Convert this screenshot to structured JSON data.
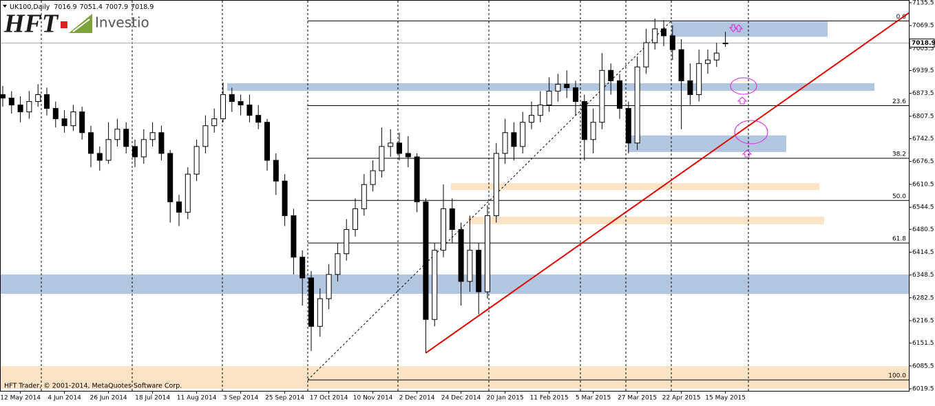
{
  "chart_data": {
    "type": "candlestick",
    "symbol": "UK100,Daily",
    "categories": [
      null,
      null,
      "12 May 2014",
      null,
      null,
      null,
      null,
      "4 Jun 2014",
      null,
      null,
      null,
      null,
      "26 Jun 2014",
      null,
      null,
      null,
      null,
      "18 Jul 2014",
      null,
      null,
      null,
      null,
      "11 Aug 2014",
      null,
      null,
      null,
      null,
      "3 Sep 2014",
      null,
      null,
      null,
      null,
      "25 Sep 2014",
      null,
      null,
      null,
      null,
      "17 Oct 2014",
      null,
      null,
      null,
      null,
      "10 Nov 2014",
      null,
      null,
      null,
      null,
      "2 Dec 2014",
      null,
      null,
      null,
      null,
      "24 Dec 2014",
      null,
      null,
      null,
      null,
      "20 Jan 2015",
      null,
      null,
      null,
      null,
      "11 Feb 2015",
      null,
      null,
      null,
      null,
      "5 Mar 2015",
      null,
      null,
      null,
      null,
      "27 Mar 2015",
      null,
      null,
      null,
      null,
      "22 Apr 2015",
      null,
      null,
      null,
      null,
      "15 May 2015"
    ],
    "open": [
      6870,
      6860,
      6840,
      6820,
      6850,
      6870,
      6830,
      6800,
      6780,
      6820,
      6760,
      6700,
      6680,
      6740,
      6770,
      6720,
      6690,
      6740,
      6760,
      6700,
      6560,
      6530,
      6640,
      6720,
      6780,
      6800,
      6870,
      6850,
      6840,
      6810,
      6790,
      6680,
      6620,
      6520,
      6400,
      6340,
      6200,
      6280,
      6350,
      6410,
      6480,
      6540,
      6610,
      6650,
      6720,
      6730,
      6700,
      6690,
      6560,
      6220,
      6420,
      6540,
      6480,
      6330,
      6420,
      6300,
      6520,
      6700,
      6760,
      6720,
      6790,
      6810,
      6840,
      6880,
      6900,
      6890,
      6850,
      6740,
      6790,
      6940,
      6910,
      6830,
      6730,
      6950,
      7020,
      7060,
      7040,
      7000,
      6910,
      6870,
      6960,
      6970,
      7016.9
    ],
    "high": [
      6895,
      6880,
      6865,
      6880,
      6900,
      6890,
      6850,
      6825,
      6840,
      6835,
      6780,
      6720,
      6790,
      6800,
      6790,
      6740,
      6770,
      6790,
      6780,
      6710,
      6580,
      6660,
      6740,
      6810,
      6830,
      6905,
      6890,
      6870,
      6870,
      6840,
      6800,
      6700,
      6640,
      6540,
      6420,
      6360,
      6310,
      6380,
      6440,
      6510,
      6570,
      6640,
      6680,
      6775,
      6770,
      6760,
      6750,
      6700,
      6570,
      6440,
      6610,
      6570,
      6500,
      6520,
      6440,
      6550,
      6730,
      6800,
      6790,
      6820,
      6850,
      6880,
      6920,
      6930,
      6940,
      6910,
      6870,
      6830,
      6990,
      6960,
      6930,
      6850,
      6980,
      7060,
      7090,
      7085,
      7070,
      7030,
      6960,
      7000,
      7000,
      7020,
      7051.4
    ],
    "low": [
      6835,
      6815,
      6790,
      6800,
      6835,
      6810,
      6775,
      6760,
      6765,
      6740,
      6660,
      6650,
      6670,
      6720,
      6700,
      6660,
      6670,
      6720,
      6680,
      6500,
      6490,
      6510,
      6620,
      6700,
      6760,
      6790,
      6820,
      6810,
      6790,
      6770,
      6650,
      6580,
      6490,
      6350,
      6260,
      6129,
      6170,
      6250,
      6330,
      6390,
      6460,
      6520,
      6590,
      6630,
      6690,
      6680,
      6660,
      6530,
      6123,
      6200,
      6400,
      6440,
      6260,
      6300,
      6235,
      6280,
      6500,
      6670,
      6680,
      6700,
      6770,
      6790,
      6820,
      6850,
      6860,
      6810,
      6680,
      6700,
      6770,
      6870,
      6800,
      6700,
      6710,
      6930,
      7000,
      7010,
      6970,
      6770,
      6840,
      6850,
      6930,
      6950,
      7007.9
    ],
    "close": [
      6860,
      6840,
      6820,
      6850,
      6870,
      6830,
      6800,
      6780,
      6820,
      6760,
      6700,
      6680,
      6740,
      6770,
      6720,
      6690,
      6740,
      6760,
      6700,
      6560,
      6530,
      6640,
      6720,
      6780,
      6800,
      6870,
      6850,
      6840,
      6810,
      6790,
      6680,
      6620,
      6520,
      6400,
      6340,
      6200,
      6280,
      6350,
      6410,
      6480,
      6540,
      6610,
      6650,
      6720,
      6730,
      6700,
      6690,
      6560,
      6220,
      6420,
      6540,
      6480,
      6330,
      6420,
      6300,
      6520,
      6700,
      6760,
      6720,
      6790,
      6810,
      6840,
      6880,
      6900,
      6890,
      6850,
      6740,
      6790,
      6940,
      6910,
      6830,
      6730,
      6950,
      7020,
      7060,
      7040,
      7000,
      6910,
      6870,
      6960,
      6970,
      6990,
      7018.9
    ],
    "bull_color": "#ffffff",
    "bear_color": "#000000",
    "ylim": [
      6019.5,
      7135.5
    ],
    "yticks": [
      7135.5,
      7069.5,
      7003.5,
      6939.5,
      6873.5,
      6807.5,
      6742.5,
      6676.5,
      6610.5,
      6544.5,
      6480.5,
      6414.5,
      6348.5,
      6282.5,
      6216.5,
      6151.5,
      6085.5,
      6019.5
    ],
    "zones": [
      {
        "color": "#b3c6e0",
        "low": 7037,
        "high": 7081
      },
      {
        "color": "#b3c6e0",
        "low": 6881,
        "high": 6903
      },
      {
        "color": "#b3c6e0",
        "low": 6704,
        "high": 6752
      },
      {
        "color": "#b3c6e0",
        "low": 6294,
        "high": 6350
      },
      {
        "color": "#fde3c5",
        "low": 6594,
        "high": 6614
      },
      {
        "color": "#fde3c5",
        "low": 6495,
        "high": 6517
      },
      {
        "color": "#fde3c5",
        "low": 6019.5,
        "high": 6085
      }
    ],
    "fibonacci": {
      "color": "#000000",
      "levels": [
        {
          "label": "0.0",
          "value": 7083
        },
        {
          "label": "23.6",
          "value": 6838
        },
        {
          "label": "38.2",
          "value": 6686
        },
        {
          "label": "50.0",
          "value": 6564
        },
        {
          "label": "61.8",
          "value": 6441
        },
        {
          "label": "100.0",
          "value": 6045
        }
      ]
    },
    "trendline": {
      "color": "#e00000",
      "values": [
        6123,
        7106
      ]
    },
    "copyright": "HFT Trader, © 2001-2014, MetaQuotes Software Corp."
  },
  "logo": {
    "mark": "HFT",
    "name": "Investio"
  }
}
